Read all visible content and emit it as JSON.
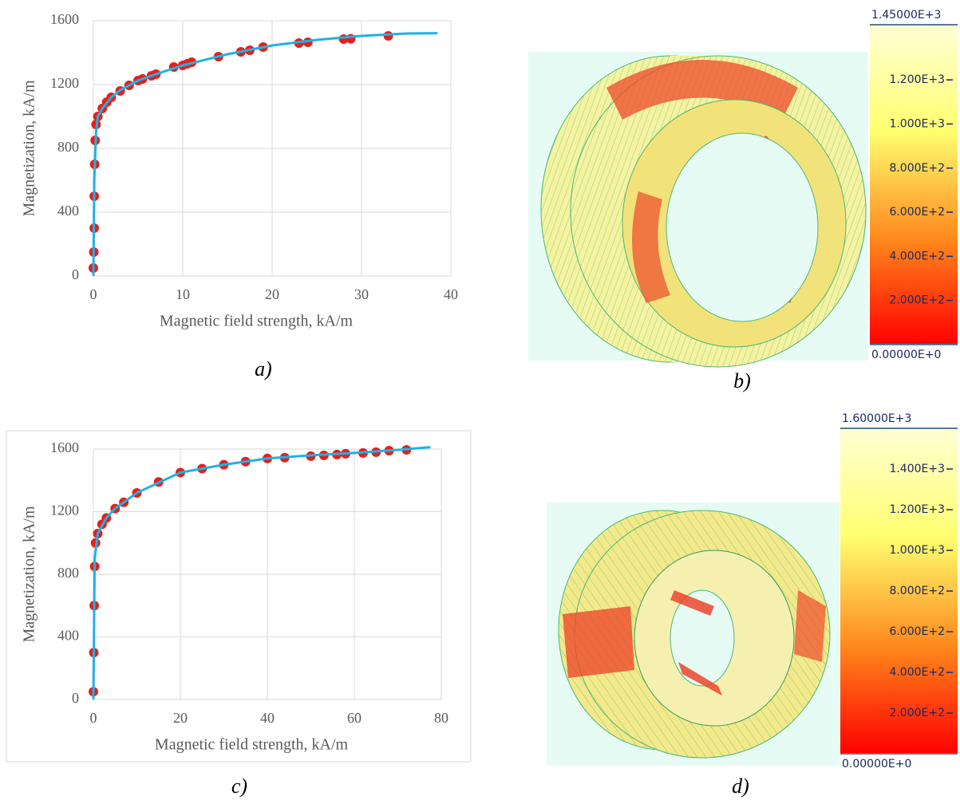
{
  "chart_data": [
    {
      "type": "scatter",
      "caption": "a)",
      "xlabel": "Magnetic field strength, kA/m",
      "ylabel": "Magnetization, kA/m",
      "xlim": [
        0,
        40
      ],
      "xticks": [
        0,
        10,
        20,
        30,
        40
      ],
      "ylim": [
        0,
        1600
      ],
      "yticks": [
        0,
        400,
        800,
        1200,
        1600
      ],
      "grid": true,
      "series": [
        {
          "type": "scatter",
          "color": "#e3211c",
          "x": [
            0,
            0.05,
            0.1,
            0.1,
            0.15,
            0.2,
            0.3,
            0.5,
            1,
            1.5,
            2,
            3,
            4,
            5,
            5.5,
            6.5,
            7,
            9,
            10,
            10.5,
            11,
            14,
            16.5,
            17.5,
            19,
            23,
            24,
            28,
            28.8,
            33
          ],
          "values": [
            50,
            150,
            300,
            500,
            700,
            850,
            950,
            1000,
            1050,
            1090,
            1120,
            1160,
            1195,
            1225,
            1235,
            1255,
            1265,
            1310,
            1320,
            1330,
            1340,
            1375,
            1405,
            1415,
            1435,
            1460,
            1465,
            1485,
            1487,
            1505
          ]
        },
        {
          "type": "line",
          "color": "#1fb1e6",
          "x": [
            0,
            0.1,
            0.3,
            0.5,
            1,
            2,
            3,
            5,
            7,
            10,
            15,
            20,
            25,
            30,
            35,
            38.5
          ],
          "values": [
            0,
            600,
            900,
            1000,
            1050,
            1120,
            1165,
            1225,
            1265,
            1320,
            1390,
            1445,
            1480,
            1505,
            1520,
            1522
          ]
        }
      ]
    },
    {
      "type": "colorbar",
      "caption": "b)",
      "ylim": [
        0,
        1450
      ],
      "colormap": [
        "#ff0000",
        "#ff8a1c",
        "#ffff70",
        "#ffffd4"
      ],
      "yticks": [
        {
          "value": 0,
          "label": "0.00000E+0"
        },
        {
          "value": 200,
          "label": "2.000E+2"
        },
        {
          "value": 400,
          "label": "4.000E+2"
        },
        {
          "value": 600,
          "label": "6.000E+2"
        },
        {
          "value": 800,
          "label": "8.000E+2"
        },
        {
          "value": 1000,
          "label": "1.000E+3"
        },
        {
          "value": 1200,
          "label": "1.200E+3"
        },
        {
          "value": 1450,
          "label": "1.45000E+3"
        }
      ]
    },
    {
      "type": "scatter",
      "caption": "c)",
      "xlabel": "Magnetic field strength, kA/m",
      "ylabel": "Magnetization, kA/m",
      "xlim": [
        0,
        80
      ],
      "xticks": [
        0,
        20,
        40,
        60,
        80
      ],
      "ylim": [
        0,
        1600
      ],
      "yticks": [
        0,
        400,
        800,
        1200,
        1600
      ],
      "grid": true,
      "series": [
        {
          "type": "scatter",
          "color": "#e3211c",
          "x": [
            0,
            0.1,
            0.2,
            0.3,
            0.5,
            1,
            2,
            3,
            5,
            7,
            10,
            15,
            20,
            25,
            30,
            35,
            40,
            44,
            50,
            53,
            56,
            58,
            62,
            65,
            68,
            72
          ],
          "values": [
            50,
            300,
            600,
            850,
            1000,
            1060,
            1120,
            1160,
            1220,
            1260,
            1320,
            1390,
            1450,
            1475,
            1500,
            1520,
            1540,
            1545,
            1555,
            1560,
            1565,
            1570,
            1575,
            1580,
            1590,
            1595
          ]
        },
        {
          "type": "line",
          "color": "#1fb1e6",
          "x": [
            0,
            0.3,
            1,
            3,
            5,
            10,
            20,
            30,
            40,
            50,
            60,
            70,
            77.5
          ],
          "values": [
            0,
            900,
            1060,
            1160,
            1220,
            1320,
            1450,
            1500,
            1540,
            1560,
            1575,
            1595,
            1612
          ]
        }
      ]
    },
    {
      "type": "colorbar",
      "caption": "d)",
      "ylim": [
        0,
        1600
      ],
      "colormap": [
        "#ff0000",
        "#ff8a1c",
        "#ffff70",
        "#ffffd4"
      ],
      "yticks": [
        {
          "value": 0,
          "label": "0.00000E+0"
        },
        {
          "value": 200,
          "label": "2.000E+2"
        },
        {
          "value": 400,
          "label": "4.000E+2"
        },
        {
          "value": 600,
          "label": "6.000E+2"
        },
        {
          "value": 800,
          "label": "8.000E+2"
        },
        {
          "value": 1000,
          "label": "1.000E+3"
        },
        {
          "value": 1200,
          "label": "1.200E+3"
        },
        {
          "value": 1400,
          "label": "1.400E+3"
        },
        {
          "value": 1600,
          "label": "1.60000E+3"
        }
      ]
    }
  ]
}
